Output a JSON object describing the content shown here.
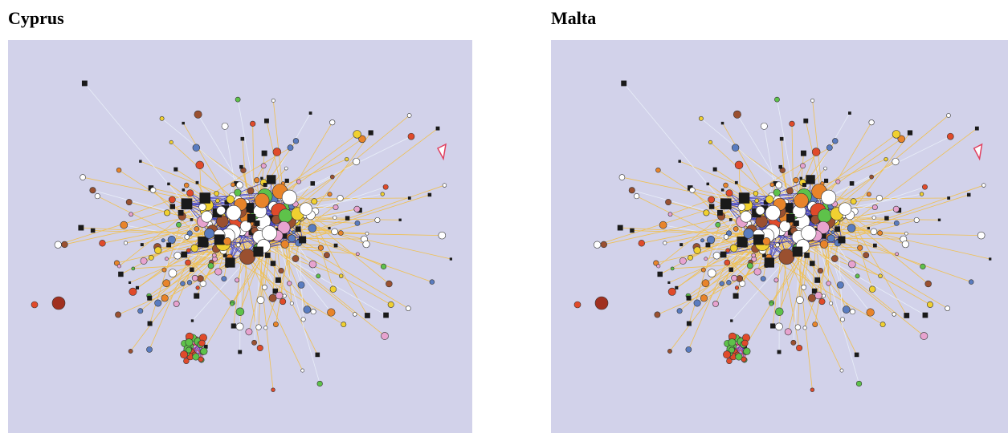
{
  "panels": [
    {
      "title": "Cyprus"
    },
    {
      "title": "Malta"
    }
  ]
}
